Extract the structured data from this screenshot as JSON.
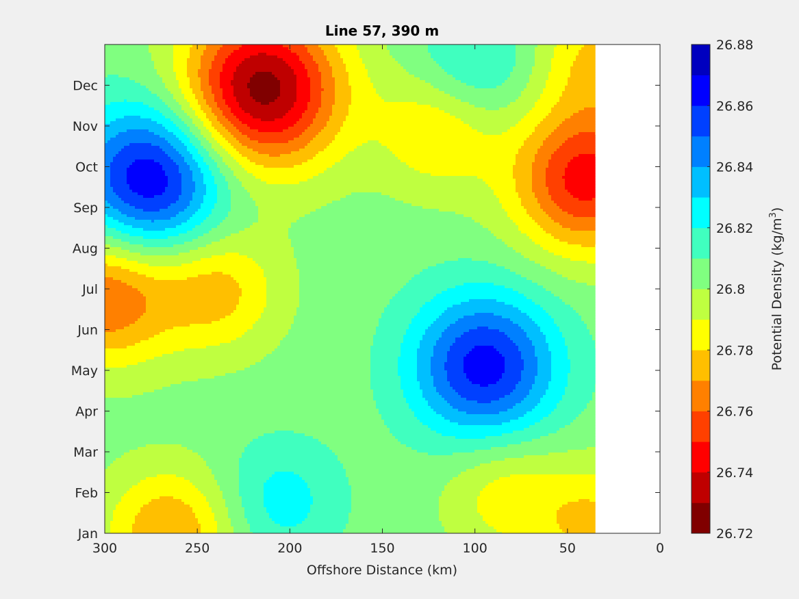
{
  "chart_data": {
    "type": "heatmap",
    "subtype": "filled-contour",
    "title": "Line 57, 390 m",
    "xlabel": "Offshore Distance (km)",
    "ylabel": "",
    "xlim": [
      300,
      0
    ],
    "x_reversed": true,
    "x_ticks": [
      300,
      250,
      200,
      150,
      100,
      50,
      0
    ],
    "y_ticks": [
      "Jan",
      "Feb",
      "Mar",
      "Apr",
      "May",
      "Jun",
      "Jul",
      "Aug",
      "Sep",
      "Oct",
      "Nov",
      "Dec"
    ],
    "data_x_extent_km": [
      300,
      35
    ],
    "colorbar": {
      "label": "Potential Density (kg/m",
      "label_sup": "3",
      "label_end": ")",
      "min": 26.72,
      "max": 26.88,
      "step": 0.01,
      "tick_labels": [
        "26.88",
        "26.86",
        "26.84",
        "26.82",
        "26.8",
        "26.78",
        "26.76",
        "26.74",
        "26.72"
      ],
      "levels": [
        {
          "range": [
            26.72,
            26.73
          ],
          "color": "#800000"
        },
        {
          "range": [
            26.73,
            26.74
          ],
          "color": "#bf0000"
        },
        {
          "range": [
            26.74,
            26.75
          ],
          "color": "#ff0000"
        },
        {
          "range": [
            26.75,
            26.76
          ],
          "color": "#ff4000"
        },
        {
          "range": [
            26.76,
            26.77
          ],
          "color": "#ff8000"
        },
        {
          "range": [
            26.77,
            26.78
          ],
          "color": "#ffbf00"
        },
        {
          "range": [
            26.78,
            26.79
          ],
          "color": "#ffff00"
        },
        {
          "range": [
            26.79,
            26.8
          ],
          "color": "#bfff40"
        },
        {
          "range": [
            26.8,
            26.81
          ],
          "color": "#80ff80"
        },
        {
          "range": [
            26.81,
            26.82
          ],
          "color": "#40ffbf"
        },
        {
          "range": [
            26.82,
            26.83
          ],
          "color": "#00ffff"
        },
        {
          "range": [
            26.83,
            26.84
          ],
          "color": "#00bfff"
        },
        {
          "range": [
            26.84,
            26.85
          ],
          "color": "#0080ff"
        },
        {
          "range": [
            26.85,
            26.86
          ],
          "color": "#0040ff"
        },
        {
          "range": [
            26.86,
            26.87
          ],
          "color": "#0000ff"
        },
        {
          "range": [
            26.87,
            26.88
          ],
          "color": "#0000bf"
        }
      ]
    },
    "features": [
      {
        "x_km": 215,
        "month": 10.9,
        "value": 26.725
      },
      {
        "x_km": 275,
        "month": 8.7,
        "value": 26.87
      },
      {
        "x_km": 95,
        "month": 4.1,
        "value": 26.865
      },
      {
        "x_km": 40,
        "month": 8.7,
        "value": 26.745
      },
      {
        "x_km": 240,
        "month": 6.0,
        "value": 26.775
      },
      {
        "x_km": 300,
        "month": 5.8,
        "value": 26.76
      },
      {
        "x_km": 265,
        "month": 0.0,
        "value": 26.77
      },
      {
        "x_km": 100,
        "month": 11.5,
        "value": 26.825
      },
      {
        "x_km": 85,
        "month": 1.0,
        "value": 26.785
      },
      {
        "x_km": 205,
        "month": 0.8,
        "value": 26.825
      },
      {
        "x_km": 120,
        "month": 9.9,
        "value": 26.78
      },
      {
        "x_km": 35,
        "month": 11.7,
        "value": 26.78
      },
      {
        "x_km": 35,
        "month": 0.2,
        "value": 26.778
      }
    ]
  }
}
